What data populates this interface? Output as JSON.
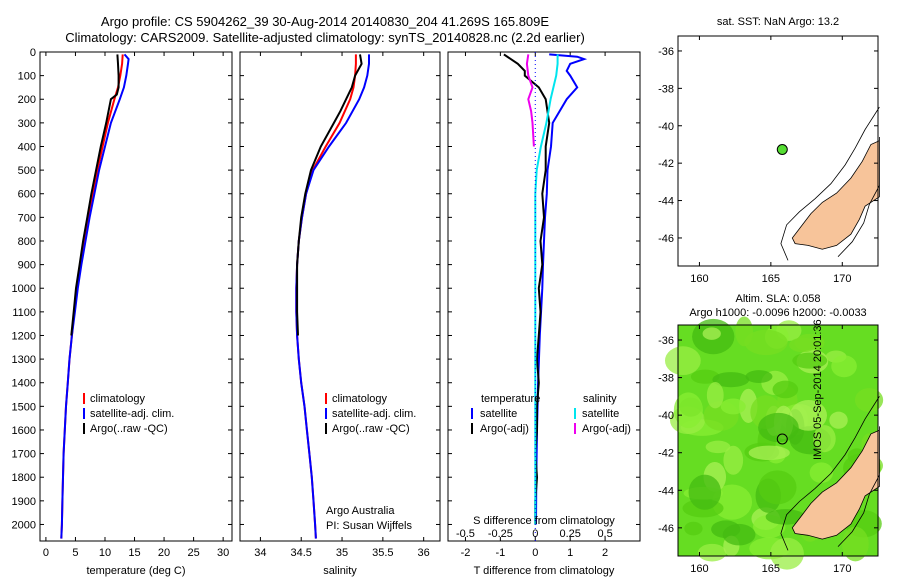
{
  "header": {
    "line1": "Argo profile: CS 5904262_39 30-Aug-2014 20140830_204 41.269S 165.809E",
    "line2": "Climatology: CARS2009. Satellite-adjusted climatology: synTS_20140828.nc (2.2d earlier)"
  },
  "colors": {
    "climatology": "#ff0000",
    "satellite": "#0000ff",
    "argo": "#000000",
    "salinity_satellite": "#00e5ee",
    "salinity_argo": "#ee00ee",
    "land": "#f7c49a",
    "argo_marker": "#55dd33"
  },
  "stamp": "IMOS 05-Sep-2014 20:01:36",
  "credit": {
    "line1": "Argo Australia",
    "line2": "PI: Susan Wijffels"
  },
  "chart_data": [
    {
      "id": "temperature",
      "type": "line",
      "xlabel": "temperature (deg C)",
      "ylabel": "",
      "xlim": [
        -1,
        31.5
      ],
      "ylim": [
        2070,
        0
      ],
      "xticks": [
        0,
        5,
        10,
        15,
        20,
        25,
        30
      ],
      "yticks": [
        0,
        100,
        200,
        300,
        400,
        500,
        600,
        700,
        800,
        900,
        1000,
        1100,
        1200,
        1300,
        1400,
        1500,
        1600,
        1700,
        1800,
        1900,
        2000
      ],
      "legend": [
        "climatology",
        "satellite-adj. clim.",
        "Argo(..raw -QC)"
      ],
      "legend_position": "bottom-center",
      "series": [
        {
          "name": "climatology",
          "color": "#ff0000",
          "depth": [
            10,
            50,
            100,
            150,
            200,
            300,
            400,
            500,
            600,
            700,
            800,
            900,
            1000,
            1100,
            1200,
            1300,
            1400,
            1500,
            1600,
            1700,
            1800,
            1900,
            2000,
            2060
          ],
          "values": [
            13.0,
            12.9,
            12.6,
            12.2,
            11.6,
            10.5,
            9.6,
            8.7,
            7.9,
            7.2,
            6.5,
            5.9,
            5.3,
            4.8,
            4.4,
            4.0,
            3.7,
            3.4,
            3.2,
            3.0,
            2.9,
            2.8,
            2.7,
            2.6
          ]
        },
        {
          "name": "satellite-adj. clim.",
          "color": "#0000ff",
          "depth": [
            10,
            30,
            50,
            100,
            150,
            200,
            300,
            400,
            500,
            600,
            700,
            800,
            900,
            1000,
            1100,
            1200,
            1300,
            1400,
            1500,
            1600,
            1700,
            1800,
            1900,
            2000,
            2060
          ],
          "values": [
            13.3,
            14.0,
            13.9,
            13.6,
            13.2,
            12.5,
            11.0,
            10.0,
            9.0,
            8.2,
            7.4,
            6.7,
            6.0,
            5.4,
            4.9,
            4.4,
            4.0,
            3.7,
            3.4,
            3.2,
            3.0,
            2.9,
            2.8,
            2.7,
            2.6
          ]
        },
        {
          "name": "Argo(..raw -QC)",
          "color": "#000000",
          "depth": [
            10,
            50,
            100,
            150,
            180,
            200,
            300,
            400,
            500,
            600,
            700,
            800,
            900,
            1000,
            1100,
            1200
          ],
          "values": [
            12.1,
            12.2,
            12.3,
            12.3,
            12.0,
            11.0,
            10.2,
            9.3,
            8.5,
            7.7,
            7.0,
            6.3,
            5.7,
            5.1,
            4.7,
            4.3
          ]
        }
      ]
    },
    {
      "id": "salinity",
      "type": "line",
      "xlabel": "salinity",
      "ylabel": "",
      "xlim": [
        33.75,
        36.2
      ],
      "ylim": [
        2070,
        0
      ],
      "xticks": [
        34,
        34.5,
        35,
        35.5,
        36
      ],
      "legend": [
        "climatology",
        "satellite-adj. clim.",
        "Argo(..raw -QC)"
      ],
      "legend_position": "bottom-right",
      "series": [
        {
          "name": "climatology",
          "color": "#ff0000",
          "depth": [
            10,
            50,
            100,
            150,
            200,
            300,
            400,
            500,
            600,
            700,
            800,
            900,
            1000,
            1100,
            1200,
            1300,
            1400,
            1500,
            1600,
            1700,
            1800,
            1900,
            2000,
            2060
          ],
          "values": [
            35.17,
            35.17,
            35.16,
            35.14,
            35.1,
            34.97,
            34.8,
            34.64,
            34.56,
            34.51,
            34.47,
            34.45,
            34.44,
            34.44,
            34.45,
            34.47,
            34.5,
            34.54,
            34.57,
            34.6,
            34.63,
            34.65,
            34.67,
            34.68
          ]
        },
        {
          "name": "satellite-adj. clim.",
          "color": "#0000ff",
          "depth": [
            10,
            50,
            100,
            150,
            200,
            300,
            400,
            500,
            600,
            700,
            800,
            900,
            1000,
            1100,
            1200,
            1300,
            1400,
            1500,
            1600,
            1700,
            1800,
            1900,
            2000,
            2060
          ],
          "values": [
            35.33,
            35.33,
            35.31,
            35.27,
            35.21,
            35.05,
            34.84,
            34.65,
            34.56,
            34.51,
            34.47,
            34.45,
            34.44,
            34.44,
            34.45,
            34.47,
            34.5,
            34.54,
            34.57,
            34.6,
            34.63,
            34.65,
            34.67,
            34.68
          ]
        },
        {
          "name": "Argo(..raw -QC)",
          "color": "#000000",
          "depth": [
            10,
            50,
            100,
            150,
            200,
            250,
            300,
            400,
            500,
            600,
            700,
            800,
            900,
            1000,
            1100,
            1200
          ],
          "values": [
            35.22,
            35.24,
            35.16,
            35.12,
            35.05,
            34.98,
            34.9,
            34.74,
            34.62,
            34.55,
            34.5,
            34.47,
            34.45,
            34.45,
            34.45,
            34.46
          ]
        }
      ]
    },
    {
      "id": "difference",
      "type": "line",
      "xlabel": "T difference from climatology",
      "xlabel_top": "S difference from climatology",
      "xlim": [
        -2.5,
        3.0
      ],
      "ylim": [
        2070,
        0
      ],
      "xticks": [
        -2,
        -1,
        0,
        1,
        2
      ],
      "xticks_top_labels": [
        "-0.5",
        "-0.25",
        "0",
        "0.25",
        "0.5"
      ],
      "xticks_top_pos": [
        -2,
        -1,
        0,
        1,
        2
      ],
      "legend_left": {
        "title": "temperature",
        "items": [
          "satellite",
          "Argo(-adj)"
        ]
      },
      "legend_right": {
        "title": "salinity",
        "items": [
          "satellite",
          "Argo(-adj)"
        ]
      },
      "series": [
        {
          "name": "T satellite",
          "color": "#0000ff",
          "depth": [
            10,
            20,
            30,
            50,
            80,
            100,
            150,
            200,
            300,
            400,
            500,
            600,
            700,
            800,
            900,
            1000,
            1200,
            1400,
            1600,
            1800,
            2000
          ],
          "values": [
            0.4,
            1.2,
            1.4,
            1.0,
            0.9,
            1.0,
            1.2,
            0.9,
            0.5,
            0.45,
            0.35,
            0.33,
            0.28,
            0.25,
            0.22,
            0.2,
            0.13,
            0.08,
            0.05,
            0.03,
            0.02
          ]
        },
        {
          "name": "T Argo(-adj)",
          "color": "#000000",
          "depth": [
            10,
            30,
            50,
            80,
            100,
            150,
            200,
            300,
            400,
            500,
            600,
            700,
            800,
            900,
            1000,
            1100,
            1200,
            1300,
            1400,
            1500,
            1600,
            1700,
            1800,
            1900,
            2000
          ],
          "values": [
            -0.9,
            -0.7,
            -0.5,
            -0.3,
            -0.3,
            0.1,
            0.3,
            0.4,
            0.3,
            0.3,
            0.2,
            0.25,
            0.15,
            0.2,
            0.1,
            0.15,
            0.1,
            0.05,
            0.1,
            0.05,
            0.05,
            0.0,
            0.05,
            0.0,
            0.0
          ]
        },
        {
          "name": "S satellite",
          "color": "#00e5ee",
          "depth": [
            10,
            50,
            100,
            150,
            200,
            300,
            400,
            500,
            600,
            700,
            800,
            1000,
            1200,
            1400,
            1600,
            1800,
            2000
          ],
          "values": [
            0.64,
            0.64,
            0.6,
            0.52,
            0.44,
            0.32,
            0.16,
            0.04,
            0.0,
            0.0,
            0.0,
            0.0,
            0.0,
            0.0,
            0.0,
            0.0,
            0.0
          ]
        },
        {
          "name": "S Argo(-adj)",
          "color": "#ee00ee",
          "depth": [
            10,
            50,
            100,
            150,
            200,
            250,
            300,
            400
          ],
          "values": [
            -0.2,
            -0.24,
            -0.2,
            -0.08,
            -0.2,
            -0.12,
            -0.08,
            -0.04
          ]
        }
      ]
    },
    {
      "id": "sst-map",
      "type": "scatter",
      "title": "sat. SST: NaN Argo: 13.2",
      "xlim": [
        158.5,
        172.5
      ],
      "ylim": [
        -47.5,
        -35.2
      ],
      "xticks": [
        160,
        165,
        170
      ],
      "yticks": [
        -36,
        -38,
        -40,
        -42,
        -44,
        -46
      ],
      "points": [
        {
          "x": 165.8,
          "y": -41.27
        }
      ]
    },
    {
      "id": "sla-map",
      "type": "heatmap",
      "title": "Altim. SLA: 0.058",
      "subtitle": "Argo h1000: -0.0096 h2000: -0.0033",
      "xlim": [
        158.5,
        172.5
      ],
      "ylim": [
        -47.5,
        -35.2
      ],
      "xticks": [
        160,
        165,
        170
      ],
      "yticks": [
        -36,
        -38,
        -40,
        -42,
        -44,
        -46
      ],
      "points": [
        {
          "x": 165.8,
          "y": -41.27
        }
      ]
    }
  ]
}
